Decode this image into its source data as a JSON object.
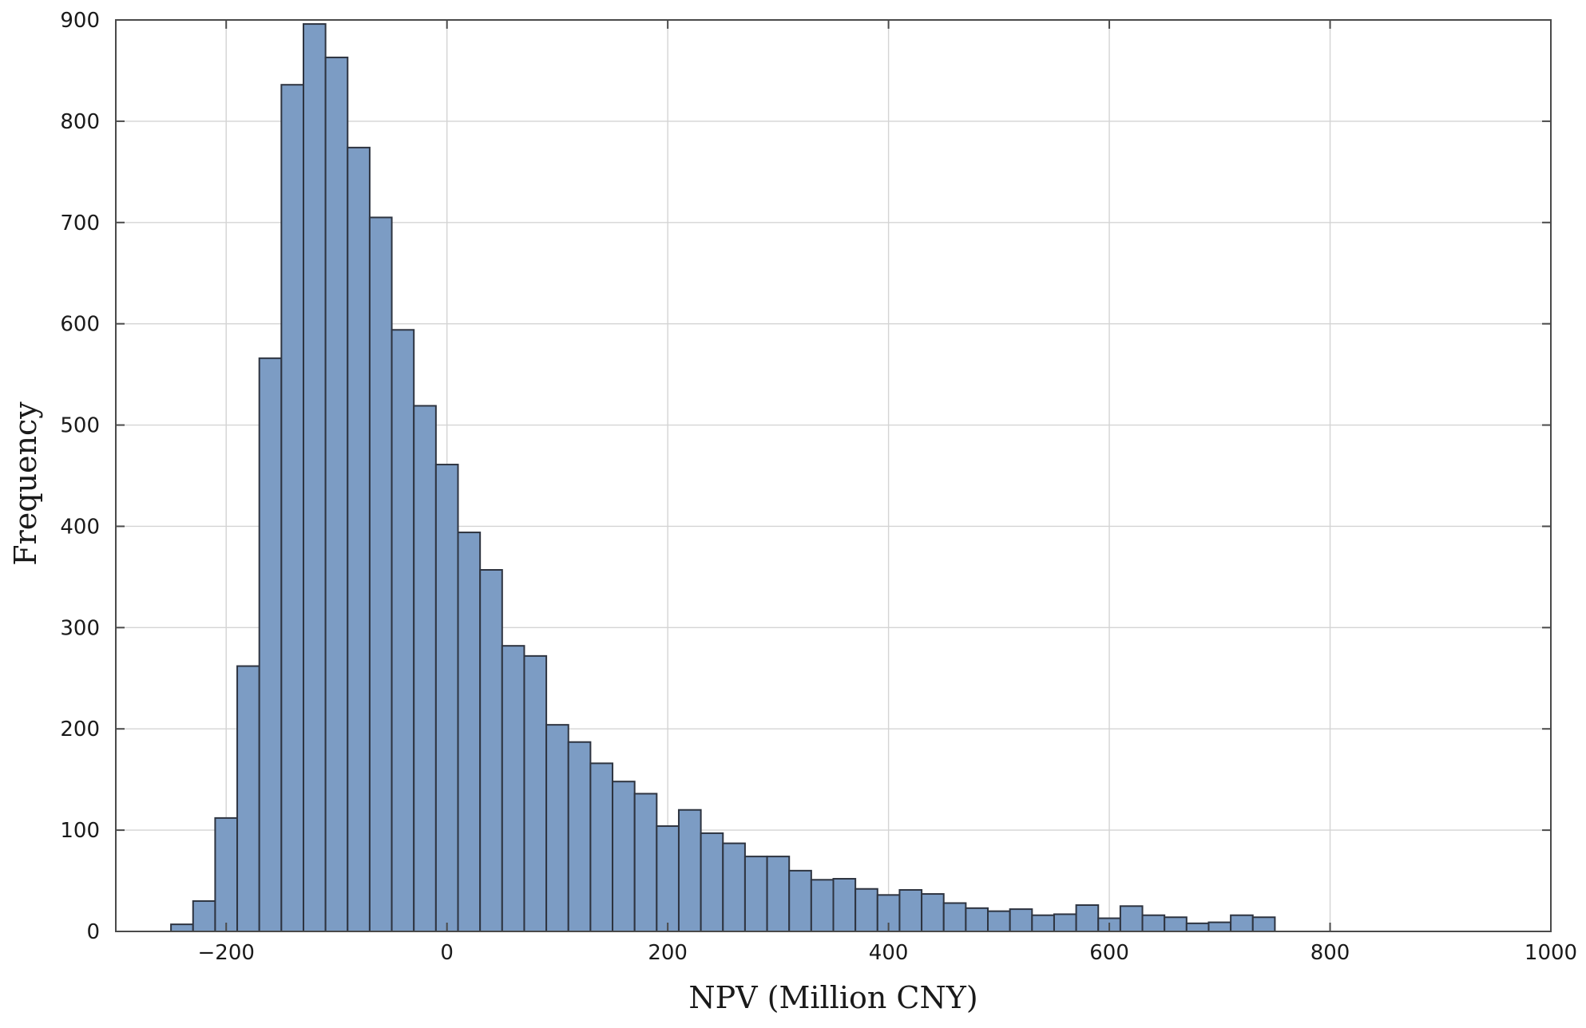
{
  "chart_data": {
    "type": "bar",
    "subtype": "histogram",
    "xlabel": "NPV (Million CNY)",
    "ylabel": "Frequency",
    "xlim": [
      -300,
      1000
    ],
    "ylim": [
      0,
      900
    ],
    "xticks": [
      -200,
      0,
      200,
      400,
      600,
      800,
      1000
    ],
    "xtick_labels": [
      "−200",
      "0",
      "200",
      "400",
      "600",
      "800",
      "1000"
    ],
    "yticks": [
      0,
      100,
      200,
      300,
      400,
      500,
      600,
      700,
      800,
      900
    ],
    "ytick_labels": [
      "0",
      "100",
      "200",
      "300",
      "400",
      "500",
      "600",
      "700",
      "800",
      "900"
    ],
    "grid": true,
    "bar_color": "#7c9cc4",
    "bar_edge_color": "#2e3440",
    "bin_width": 20,
    "bins": [
      {
        "x0": -250,
        "x1": -230,
        "count": 7
      },
      {
        "x0": -230,
        "x1": -210,
        "count": 30
      },
      {
        "x0": -210,
        "x1": -190,
        "count": 112
      },
      {
        "x0": -190,
        "x1": -170,
        "count": 262
      },
      {
        "x0": -170,
        "x1": -150,
        "count": 566
      },
      {
        "x0": -150,
        "x1": -130,
        "count": 836
      },
      {
        "x0": -130,
        "x1": -110,
        "count": 896
      },
      {
        "x0": -110,
        "x1": -90,
        "count": 863
      },
      {
        "x0": -90,
        "x1": -70,
        "count": 774
      },
      {
        "x0": -70,
        "x1": -50,
        "count": 705
      },
      {
        "x0": -50,
        "x1": -30,
        "count": 594
      },
      {
        "x0": -30,
        "x1": -10,
        "count": 519
      },
      {
        "x0": -10,
        "x1": 10,
        "count": 461
      },
      {
        "x0": 10,
        "x1": 30,
        "count": 394
      },
      {
        "x0": 30,
        "x1": 50,
        "count": 357
      },
      {
        "x0": 50,
        "x1": 70,
        "count": 282
      },
      {
        "x0": 70,
        "x1": 90,
        "count": 272
      },
      {
        "x0": 90,
        "x1": 110,
        "count": 204
      },
      {
        "x0": 110,
        "x1": 130,
        "count": 187
      },
      {
        "x0": 130,
        "x1": 150,
        "count": 166
      },
      {
        "x0": 150,
        "x1": 170,
        "count": 148
      },
      {
        "x0": 170,
        "x1": 190,
        "count": 136
      },
      {
        "x0": 190,
        "x1": 210,
        "count": 104
      },
      {
        "x0": 210,
        "x1": 230,
        "count": 120
      },
      {
        "x0": 230,
        "x1": 250,
        "count": 97
      },
      {
        "x0": 250,
        "x1": 270,
        "count": 87
      },
      {
        "x0": 270,
        "x1": 290,
        "count": 74
      },
      {
        "x0": 290,
        "x1": 310,
        "count": 74
      },
      {
        "x0": 310,
        "x1": 330,
        "count": 60
      },
      {
        "x0": 330,
        "x1": 350,
        "count": 51
      },
      {
        "x0": 350,
        "x1": 370,
        "count": 52
      },
      {
        "x0": 370,
        "x1": 390,
        "count": 42
      },
      {
        "x0": 390,
        "x1": 410,
        "count": 36
      },
      {
        "x0": 410,
        "x1": 430,
        "count": 41
      },
      {
        "x0": 430,
        "x1": 450,
        "count": 37
      },
      {
        "x0": 450,
        "x1": 470,
        "count": 28
      },
      {
        "x0": 470,
        "x1": 490,
        "count": 23
      },
      {
        "x0": 490,
        "x1": 510,
        "count": 20
      },
      {
        "x0": 510,
        "x1": 530,
        "count": 22
      },
      {
        "x0": 530,
        "x1": 550,
        "count": 16
      },
      {
        "x0": 550,
        "x1": 570,
        "count": 17
      },
      {
        "x0": 570,
        "x1": 590,
        "count": 26
      },
      {
        "x0": 590,
        "x1": 610,
        "count": 13
      },
      {
        "x0": 610,
        "x1": 630,
        "count": 25
      },
      {
        "x0": 630,
        "x1": 650,
        "count": 16
      },
      {
        "x0": 650,
        "x1": 670,
        "count": 14
      },
      {
        "x0": 670,
        "x1": 690,
        "count": 8
      },
      {
        "x0": 690,
        "x1": 710,
        "count": 9
      },
      {
        "x0": 710,
        "x1": 730,
        "count": 16
      },
      {
        "x0": 730,
        "x1": 750,
        "count": 14
      }
    ]
  }
}
